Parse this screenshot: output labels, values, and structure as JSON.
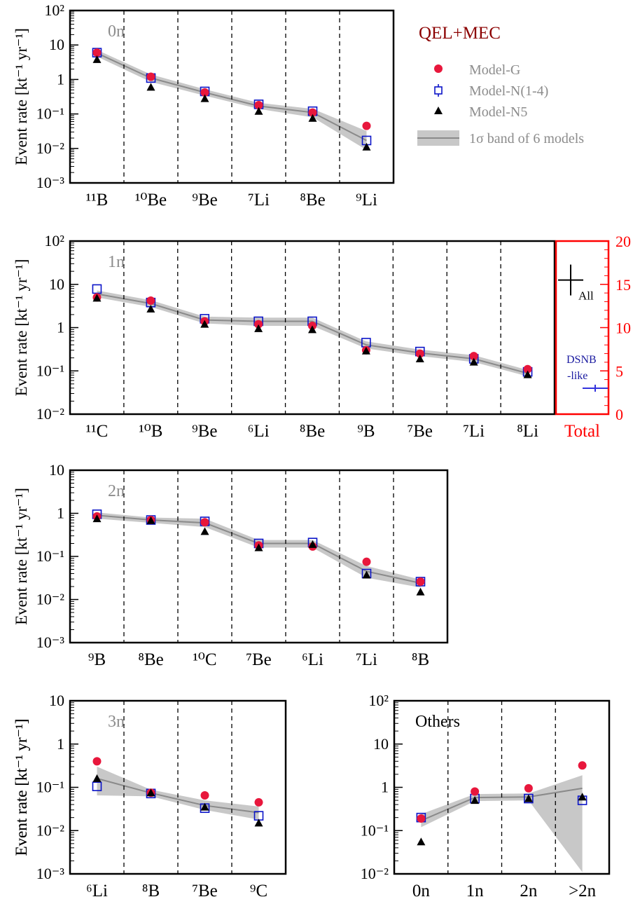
{
  "figure": {
    "legend": {
      "title": "QEL+MEC",
      "entries": [
        "Model-G",
        "Model-N(1-4)",
        "Model-N5",
        "1σ band of 6 models"
      ]
    },
    "colors": {
      "model_g": "#e8173c",
      "model_n14": "#0b14c8",
      "model_n5": "#000000",
      "band": "#c8c8c8",
      "band_line": "#8a8a8a",
      "panel_label": "#8c8c8c",
      "total": "#ff0000",
      "title": "#8b0000",
      "dsnb": "#1a1aa0"
    },
    "ylabel": "Event rate [kt⁻¹ yr⁻¹]"
  },
  "chart_data": [
    {
      "type": "scatter",
      "label": "0n",
      "yscale": "log",
      "ylim": [
        0.001,
        100
      ],
      "categories": [
        "¹¹B",
        "¹⁰Be",
        "⁹Be",
        "⁷Li",
        "⁸Be",
        "⁹Li"
      ],
      "yticks": [
        "10⁻³",
        "10⁻²",
        "10⁻¹",
        "1",
        "10",
        "10²"
      ],
      "series": [
        {
          "name": "Model-G",
          "values": [
            6.0,
            1.2,
            0.42,
            0.18,
            0.11,
            0.045
          ]
        },
        {
          "name": "Model-N(1-4)",
          "values": [
            6.0,
            1.1,
            0.45,
            0.19,
            0.12,
            0.017
          ]
        },
        {
          "name": "Model-N5",
          "values": [
            3.8,
            0.6,
            0.28,
            0.12,
            0.075,
            0.011
          ]
        }
      ],
      "band_center": [
        5.8,
        1.1,
        0.42,
        0.17,
        0.11,
        0.017
      ],
      "band_low": [
        4.6,
        0.85,
        0.34,
        0.14,
        0.08,
        0.009
      ],
      "band_high": [
        7.2,
        1.4,
        0.52,
        0.21,
        0.14,
        0.032
      ]
    },
    {
      "type": "scatter",
      "label": "1n",
      "yscale": "log",
      "ylim": [
        0.01,
        100
      ],
      "categories": [
        "¹¹C",
        "¹⁰B",
        "⁹Be",
        "⁶Li",
        "⁸Be",
        "⁹B",
        "⁷Be",
        "⁷Li",
        "⁸Li"
      ],
      "yticks": [
        "10⁻²",
        "10⁻¹",
        "1",
        "10",
        "10²"
      ],
      "series": [
        {
          "name": "Model-G",
          "values": [
            5.0,
            4.2,
            1.4,
            1.2,
            1.1,
            0.3,
            0.25,
            0.22,
            0.11
          ]
        },
        {
          "name": "Model-N(1-4)",
          "values": [
            7.8,
            3.8,
            1.6,
            1.4,
            1.4,
            0.45,
            0.28,
            0.19,
            0.095
          ]
        },
        {
          "name": "Model-N5",
          "values": [
            4.8,
            2.7,
            1.2,
            0.95,
            0.9,
            0.29,
            0.19,
            0.16,
            0.082
          ]
        }
      ],
      "band_center": [
        6.0,
        3.6,
        1.5,
        1.4,
        1.4,
        0.4,
        0.26,
        0.19,
        0.088
      ],
      "band_low": [
        5.0,
        3.0,
        1.25,
        1.1,
        1.1,
        0.33,
        0.22,
        0.16,
        0.075
      ],
      "band_high": [
        7.2,
        4.3,
        1.8,
        1.7,
        1.7,
        0.48,
        0.31,
        0.23,
        0.105
      ],
      "total": {
        "label": "Total",
        "ylim": [
          0,
          20
        ],
        "yticks": [
          "0",
          "5",
          "10",
          "15",
          "20"
        ],
        "points": [
          {
            "label": "All",
            "value": 15.5
          },
          {
            "label": "DSNB-like",
            "value": 3.0
          }
        ]
      }
    },
    {
      "type": "scatter",
      "label": "2n",
      "yscale": "log",
      "ylim": [
        0.001,
        10
      ],
      "categories": [
        "⁹B",
        "⁸Be",
        "¹⁰C",
        "⁷Be",
        "⁶Li",
        "⁷Li",
        "⁸B"
      ],
      "yticks": [
        "10⁻³",
        "10⁻²",
        "10⁻¹",
        "1",
        "10"
      ],
      "series": [
        {
          "name": "Model-G",
          "values": [
            0.85,
            0.7,
            0.62,
            0.18,
            0.17,
            0.075,
            0.026
          ]
        },
        {
          "name": "Model-N(1-4)",
          "values": [
            0.95,
            0.7,
            0.65,
            0.2,
            0.21,
            0.04,
            0.026
          ]
        },
        {
          "name": "Model-N5",
          "values": [
            0.75,
            0.68,
            0.38,
            0.16,
            0.19,
            0.037,
            0.015
          ]
        }
      ],
      "band_center": [
        0.9,
        0.7,
        0.6,
        0.2,
        0.2,
        0.045,
        0.024
      ],
      "band_low": [
        0.75,
        0.6,
        0.48,
        0.16,
        0.16,
        0.032,
        0.019
      ],
      "band_high": [
        1.05,
        0.8,
        0.75,
        0.24,
        0.24,
        0.06,
        0.029
      ]
    },
    {
      "type": "scatter",
      "label": "3n",
      "yscale": "log",
      "ylim": [
        0.001,
        10
      ],
      "categories": [
        "⁶Li",
        "⁸B",
        "⁷Be",
        "⁹C"
      ],
      "yticks": [
        "10⁻³",
        "10⁻²",
        "10⁻¹",
        "1",
        "10"
      ],
      "series": [
        {
          "name": "Model-G",
          "values": [
            0.4,
            0.075,
            0.065,
            0.045
          ]
        },
        {
          "name": "Model-N(1-4)",
          "values": [
            0.105,
            0.072,
            0.033,
            0.022
          ]
        },
        {
          "name": "Model-N5",
          "values": [
            0.16,
            0.075,
            0.035,
            0.015
          ]
        }
      ],
      "band_center": [
        0.16,
        0.074,
        0.038,
        0.026
      ],
      "band_low": [
        0.065,
        0.062,
        0.03,
        0.018
      ],
      "band_high": [
        0.3,
        0.088,
        0.05,
        0.036
      ]
    },
    {
      "type": "scatter",
      "label": "Others",
      "yscale": "log",
      "ylim": [
        0.01,
        100
      ],
      "categories": [
        "0n",
        "1n",
        "2n",
        ">2n"
      ],
      "yticks": [
        "10⁻²",
        "10⁻¹",
        "1",
        "10",
        "10²"
      ],
      "series": [
        {
          "name": "Model-G",
          "values": [
            0.19,
            0.8,
            0.95,
            3.2
          ]
        },
        {
          "name": "Model-N(1-4)",
          "values": [
            0.2,
            0.55,
            0.55,
            0.5
          ]
        },
        {
          "name": "Model-N5",
          "values": [
            0.055,
            0.5,
            0.55,
            0.6
          ]
        }
      ],
      "band_center": [
        0.17,
        0.58,
        0.6,
        0.95
      ],
      "band_low": [
        0.12,
        0.48,
        0.5,
        0.011
      ],
      "band_high": [
        0.24,
        0.7,
        0.72,
        1.9
      ]
    }
  ]
}
